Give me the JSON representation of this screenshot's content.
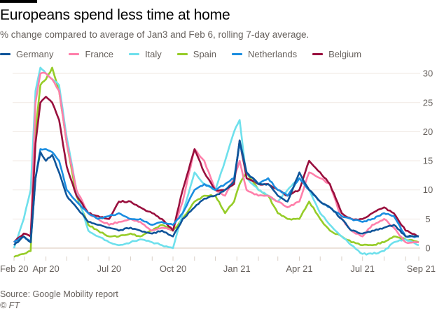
{
  "header": {
    "title": "Europeans spend less time at home",
    "subtitle": "% change compared to average of Jan3 and Feb 6, rolling 7-day average."
  },
  "footer": {
    "source": "Source: Google Mobility report",
    "copyright": "© FT"
  },
  "chart_data": {
    "type": "line",
    "title": "Europeans spend less time at home",
    "subtitle": "% change compared to average of Jan3 and Feb 6, rolling 7-day average.",
    "xlabel": "",
    "ylabel": "",
    "ylim": [
      -1,
      31
    ],
    "yticks": [
      0,
      5,
      10,
      15,
      20,
      25,
      30
    ],
    "y_axis_side": "right",
    "grid": true,
    "legend_position": "top-left",
    "x_start": "2020-02-15",
    "x_end": "2021-09-20",
    "xticks": [
      {
        "label": "Feb 20",
        "date": "2020-02-15"
      },
      {
        "label": "Apr 20",
        "date": "2020-04-01"
      },
      {
        "label": "Jul 20",
        "date": "2020-07-01"
      },
      {
        "label": "Oct 20",
        "date": "2020-10-01"
      },
      {
        "label": "Jan 21",
        "date": "2021-01-01"
      },
      {
        "label": "Apr 21",
        "date": "2021-04-01"
      },
      {
        "label": "Jul 21",
        "date": "2021-07-01"
      },
      {
        "label": "Sep 21",
        "date": "2021-09-20"
      }
    ],
    "x": [
      "2020-02-15",
      "2020-02-29",
      "2020-03-10",
      "2020-03-17",
      "2020-03-24",
      "2020-04-01",
      "2020-04-10",
      "2020-04-20",
      "2020-05-01",
      "2020-05-15",
      "2020-06-01",
      "2020-06-15",
      "2020-07-01",
      "2020-07-15",
      "2020-08-01",
      "2020-08-15",
      "2020-09-01",
      "2020-09-15",
      "2020-10-01",
      "2020-10-15",
      "2020-11-01",
      "2020-11-15",
      "2020-12-01",
      "2020-12-15",
      "2020-12-28",
      "2021-01-05",
      "2021-01-15",
      "2021-02-01",
      "2021-02-15",
      "2021-03-01",
      "2021-03-15",
      "2021-04-01",
      "2021-04-15",
      "2021-05-01",
      "2021-05-15",
      "2021-06-01",
      "2021-06-15",
      "2021-07-01",
      "2021-07-15",
      "2021-08-01",
      "2021-08-15",
      "2021-09-01",
      "2021-09-20"
    ],
    "series": [
      {
        "name": "Germany",
        "color": "#0f5499",
        "values": [
          0.5,
          2,
          1,
          12,
          16.5,
          15,
          16,
          13,
          9,
          7,
          4.5,
          4,
          3.5,
          3,
          3.5,
          3,
          2.5,
          3,
          2,
          5,
          7,
          8.5,
          9,
          10,
          11.5,
          18.5,
          13,
          11,
          11,
          9,
          8,
          13,
          10,
          8,
          7,
          5,
          3,
          2.5,
          3,
          3.5,
          4,
          2,
          2
        ]
      },
      {
        "name": "France",
        "color": "#ff7faa",
        "values": [
          1,
          2.5,
          2,
          25,
          30,
          30,
          29,
          27,
          18,
          10,
          6,
          5,
          4,
          4.5,
          5,
          4.5,
          3,
          3.5,
          3,
          8,
          17,
          15,
          10,
          9,
          12,
          15,
          10,
          9,
          9,
          8,
          7,
          8,
          13,
          12,
          11,
          5,
          3,
          2,
          4,
          5,
          3.5,
          1,
          1
        ]
      },
      {
        "name": "Italy",
        "color": "#6ee0ec",
        "values": [
          0,
          5,
          10,
          27,
          31,
          30,
          29,
          28,
          19,
          10,
          3,
          2,
          1,
          0.5,
          1,
          1.5,
          1,
          0.5,
          0,
          6,
          13,
          11,
          10,
          15,
          20,
          22,
          12,
          10,
          9,
          8,
          10,
          12,
          10,
          6,
          4,
          2,
          0.5,
          -1,
          -1,
          -0.5,
          1,
          1.5,
          0.5
        ]
      },
      {
        "name": "Spain",
        "color": "#96cc28",
        "values": [
          -1.5,
          -1,
          -0.5,
          20,
          28,
          29,
          31,
          27,
          18,
          9,
          4,
          3,
          2,
          2,
          2.5,
          2,
          3,
          4,
          3,
          5,
          8,
          9,
          9,
          6,
          8,
          11,
          13,
          10,
          9,
          6,
          5,
          5,
          8,
          5,
          3,
          2,
          1,
          0.5,
          0.5,
          1,
          2,
          1.5,
          1
        ]
      },
      {
        "name": "Netherlands",
        "color": "#1a8de0",
        "values": [
          1,
          2,
          1,
          12,
          17,
          17,
          16.5,
          15,
          10,
          8,
          6,
          5,
          5.5,
          6,
          5,
          5,
          4,
          4.5,
          4,
          6,
          10,
          11,
          10,
          11,
          12,
          18,
          13,
          11,
          12,
          10,
          9,
          12,
          10,
          8,
          7,
          5.5,
          5,
          4.5,
          5,
          6,
          5.5,
          2,
          2
        ]
      },
      {
        "name": "Belgium",
        "color": "#990f3d",
        "values": [
          1,
          2.5,
          2,
          18,
          25,
          26,
          25,
          22,
          14,
          9,
          6,
          5.5,
          5,
          8,
          8,
          7,
          6,
          5,
          3,
          10,
          17,
          13,
          10,
          10,
          11,
          18.5,
          12,
          11,
          11,
          10,
          9,
          10,
          15,
          13,
          11,
          6,
          5,
          5,
          6,
          7,
          6,
          3,
          2
        ]
      }
    ]
  }
}
